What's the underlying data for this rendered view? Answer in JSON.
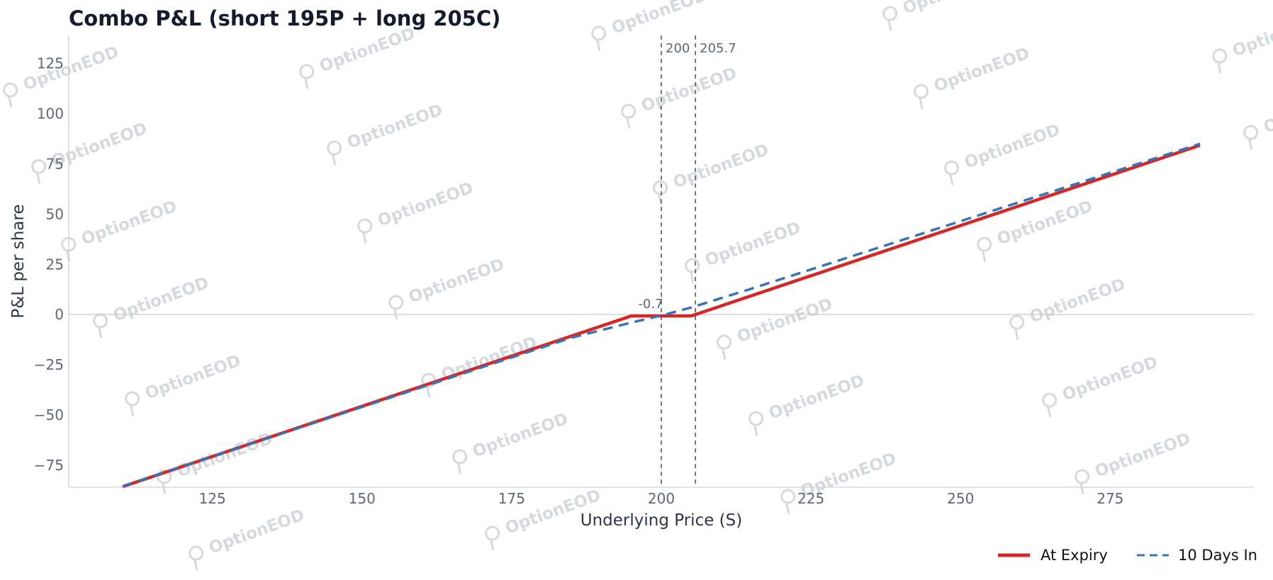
{
  "chart_data": {
    "type": "line",
    "title": "Combo P&L (short 195P + long 205C)",
    "xlabel": "Underlying Price (S)",
    "ylabel": "P&L per share",
    "xlim": [
      101,
      299
    ],
    "ylim": [
      -86,
      139
    ],
    "xticks": [
      125,
      150,
      175,
      200,
      225,
      250,
      275
    ],
    "yticks": [
      -75,
      -50,
      -25,
      0,
      25,
      50,
      75,
      100,
      125
    ],
    "grid": false,
    "zero_line": true,
    "legend_position": "bottom-right",
    "series": [
      {
        "name": "At Expiry",
        "color": "#d62728",
        "style": "solid",
        "x": [
          110,
          195,
          205,
          290
        ],
        "y": [
          -85.7,
          -0.7,
          -0.7,
          84.3
        ]
      },
      {
        "name": "10 Days In",
        "color": "#3a73b5",
        "style": "dashed",
        "x": [
          110,
          185,
          195,
          200,
          205,
          215,
          290
        ],
        "y": [
          -85.5,
          -11.5,
          -4.0,
          -0.5,
          3.5,
          12.8,
          85.0
        ]
      }
    ],
    "vlines": [
      {
        "x": 200,
        "label": "200"
      },
      {
        "x": 205.7,
        "label": "205.7"
      }
    ],
    "annotations": [
      {
        "x": 200,
        "y": -0.7,
        "text": "-0.7"
      }
    ]
  },
  "watermark": {
    "text": "OptionEOD",
    "color": "#d6d9de",
    "icon": "optioneod-logo-icon"
  }
}
